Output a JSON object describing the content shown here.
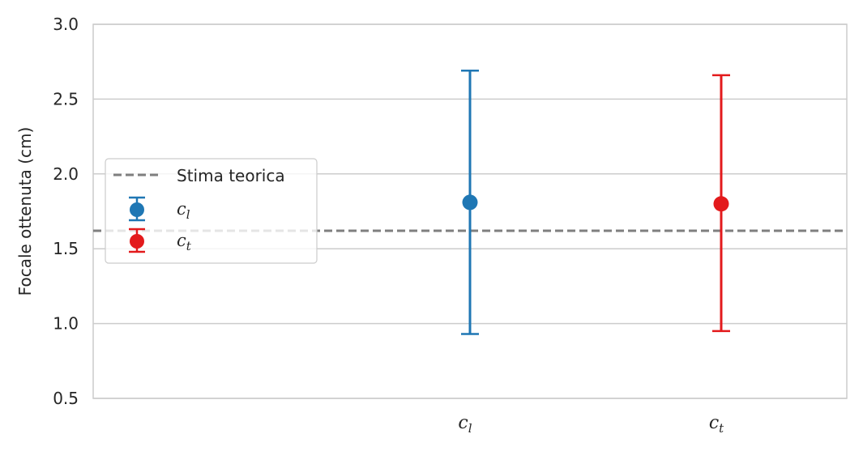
{
  "chart_data": {
    "type": "scatter",
    "title": "",
    "xlabel": "",
    "ylabel": "Focale ottenuta (cm)",
    "ylim": [
      0.5,
      3.0
    ],
    "yticks": [
      "0.5",
      "1.0",
      "1.5",
      "2.0",
      "2.5",
      "3.0"
    ],
    "categories": [
      {
        "base": "c",
        "sub": "l"
      },
      {
        "base": "c",
        "sub": "t"
      }
    ],
    "series": [
      {
        "name_base": "c",
        "name_sub": "l",
        "category_index": 0,
        "value": 1.81,
        "err_low": 0.93,
        "err_high": 2.69,
        "color": "#1f77b4"
      },
      {
        "name_base": "c",
        "name_sub": "t",
        "category_index": 1,
        "value": 1.8,
        "err_low": 0.95,
        "err_high": 2.66,
        "color": "#e31a1c"
      }
    ],
    "reference_line": {
      "name": "Stima teorica",
      "value": 1.62,
      "color": "#7f7f7f",
      "style": "dashed"
    },
    "grid": "horizontal",
    "legend_position": "center-left"
  }
}
